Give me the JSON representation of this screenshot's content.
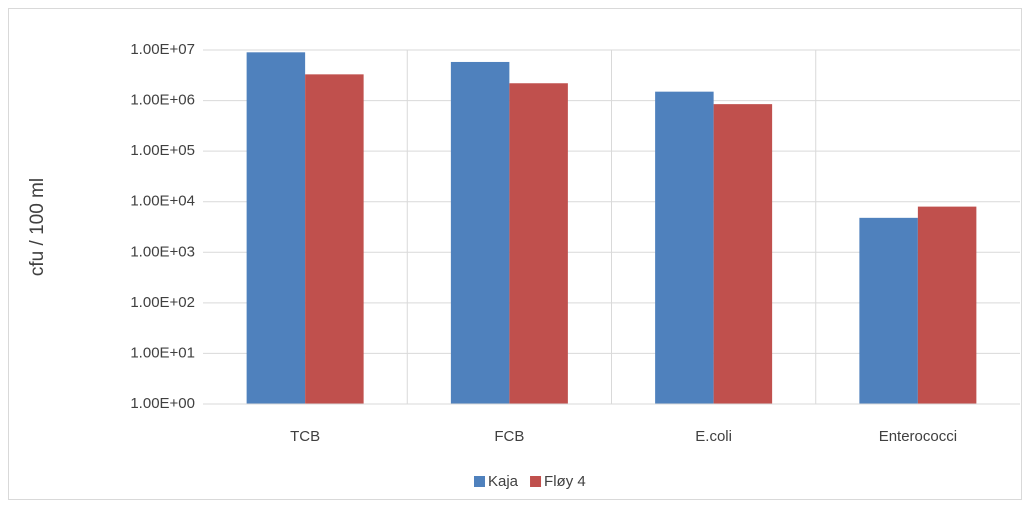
{
  "chart_data": {
    "type": "bar",
    "y_label": "cfu / 100 ml",
    "categories": [
      "TCB",
      "FCB",
      "E.coli",
      "Enterococci"
    ],
    "series": [
      {
        "name": "Kaja",
        "color": "#4f81bd",
        "values": [
          9000000,
          5800000,
          1500000,
          4800
        ]
      },
      {
        "name": "Fløy 4",
        "color": "#c0504d",
        "values": [
          3300000,
          2200000,
          850000,
          8000
        ]
      }
    ],
    "log_scale": true,
    "ylim": [
      1,
      10000000
    ],
    "yticks": [
      {
        "value": 1,
        "label": "1.00E+00"
      },
      {
        "value": 10,
        "label": "1.00E+01"
      },
      {
        "value": 100,
        "label": "1.00E+02"
      },
      {
        "value": 1000,
        "label": "1.00E+03"
      },
      {
        "value": 10000,
        "label": "1.00E+04"
      },
      {
        "value": 100000,
        "label": "1.00E+05"
      },
      {
        "value": 1000000,
        "label": "1.00E+06"
      },
      {
        "value": 10000000,
        "label": "1.00E+07"
      }
    ],
    "grid": true,
    "legend": "bottom"
  }
}
